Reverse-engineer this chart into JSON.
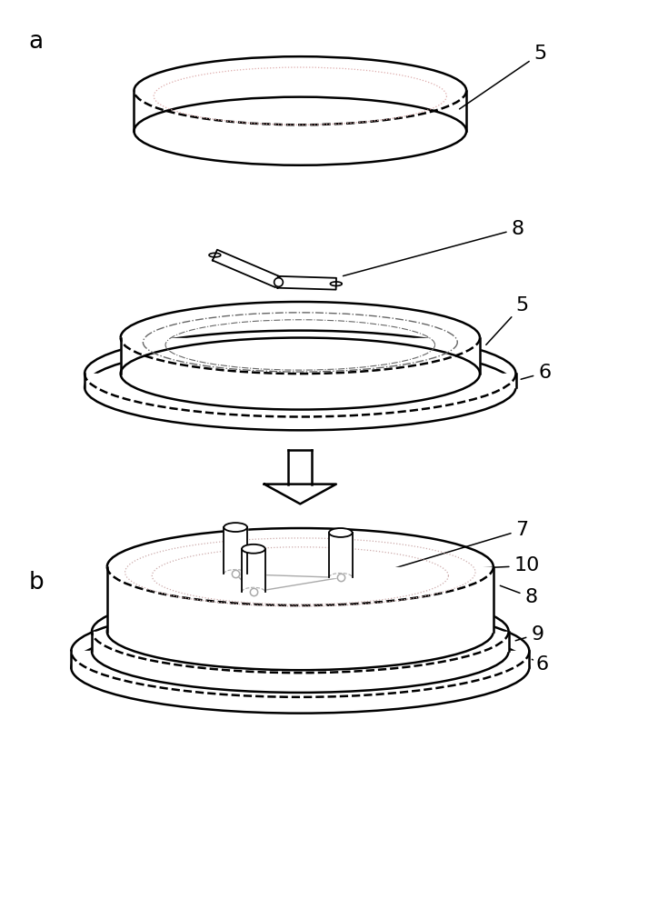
{
  "bg_color": "#ffffff",
  "line_color": "#000000",
  "label_a": "a",
  "label_b": "b",
  "pink_dot": "#ddaaaa",
  "gray_dash": "#666666",
  "light_gray": "#aaaaaa",
  "light_pink": "#ccaaaa"
}
